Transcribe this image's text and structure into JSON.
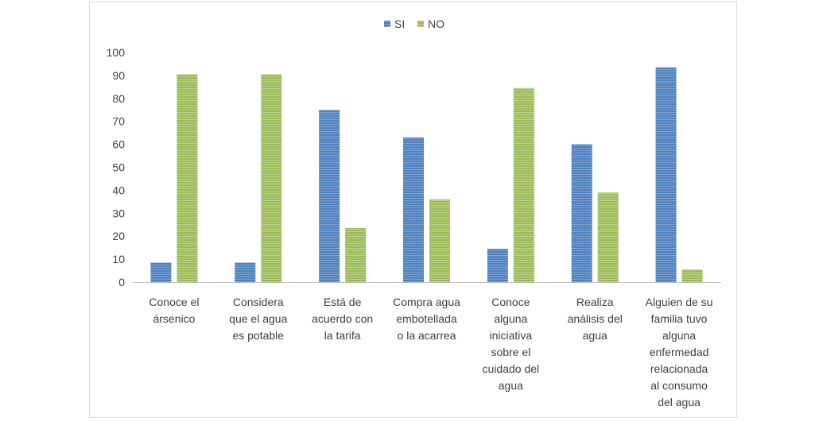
{
  "chart_data": {
    "type": "bar",
    "title": "",
    "xlabel": "",
    "ylabel": "",
    "ylim": [
      0,
      100
    ],
    "yticks": [
      0,
      10,
      20,
      30,
      40,
      50,
      60,
      70,
      80,
      90,
      100
    ],
    "grid": false,
    "legend_position": "top",
    "categories": [
      [
        "Conoce el",
        "ársenico"
      ],
      [
        "Considera",
        "que el agua",
        "es potable"
      ],
      [
        "Está de",
        "acuerdo con",
        "la tarifa"
      ],
      [
        "Compra agua",
        "embotellada",
        "o la acarrea"
      ],
      [
        "Conoce",
        "alguna",
        "iniciativa",
        "sobre el",
        "cuidado del",
        "agua"
      ],
      [
        "Realiza",
        "análisis del",
        "agua"
      ],
      [
        "Alguien de su",
        "familia tuvo",
        "alguna",
        "enfermedad",
        "relacionada",
        "al consumo",
        "del agua"
      ]
    ],
    "series": [
      {
        "name": "SI",
        "color": "#4f81bd",
        "values": [
          8.5,
          8.5,
          75,
          63,
          14.5,
          60,
          93.5
        ]
      },
      {
        "name": "NO",
        "color": "#9bbb59",
        "values": [
          90.5,
          90.5,
          23.5,
          36,
          84.5,
          39,
          5.5
        ]
      }
    ]
  }
}
